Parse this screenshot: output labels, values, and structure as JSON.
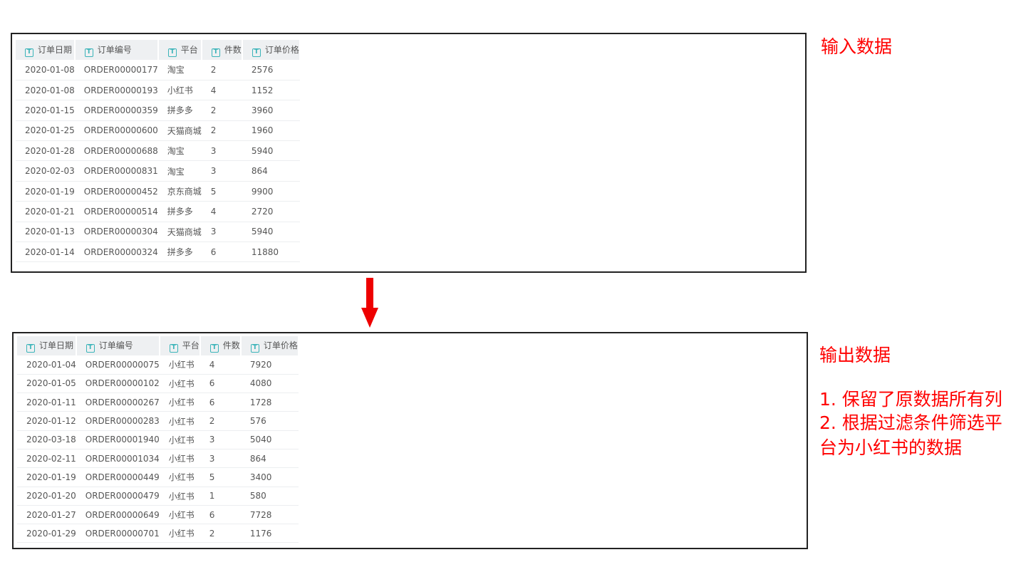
{
  "columns": [
    "订单日期",
    "订单编号",
    "平台",
    "件数",
    "订单价格"
  ],
  "column_icon": "text-type-icon",
  "input_table": {
    "rows": [
      [
        "2020-01-08",
        "ORDER00000177",
        "淘宝",
        "2",
        "2576"
      ],
      [
        "2020-01-08",
        "ORDER00000193",
        "小红书",
        "4",
        "1152"
      ],
      [
        "2020-01-15",
        "ORDER00000359",
        "拼多多",
        "2",
        "3960"
      ],
      [
        "2020-01-25",
        "ORDER00000600",
        "天猫商城",
        "2",
        "1960"
      ],
      [
        "2020-01-28",
        "ORDER00000688",
        "淘宝",
        "3",
        "5940"
      ],
      [
        "2020-02-03",
        "ORDER00000831",
        "淘宝",
        "3",
        "864"
      ],
      [
        "2020-01-19",
        "ORDER00000452",
        "京东商城",
        "5",
        "9900"
      ],
      [
        "2020-01-21",
        "ORDER00000514",
        "拼多多",
        "4",
        "2720"
      ],
      [
        "2020-01-13",
        "ORDER00000304",
        "天猫商城",
        "3",
        "5940"
      ],
      [
        "2020-01-14",
        "ORDER00000324",
        "拼多多",
        "6",
        "11880"
      ]
    ]
  },
  "output_table": {
    "rows": [
      [
        "2020-01-04",
        "ORDER00000075",
        "小红书",
        "4",
        "7920"
      ],
      [
        "2020-01-05",
        "ORDER00000102",
        "小红书",
        "6",
        "4080"
      ],
      [
        "2020-01-11",
        "ORDER00000267",
        "小红书",
        "6",
        "1728"
      ],
      [
        "2020-01-12",
        "ORDER00000283",
        "小红书",
        "2",
        "576"
      ],
      [
        "2020-03-18",
        "ORDER00001940",
        "小红书",
        "3",
        "5040"
      ],
      [
        "2020-02-11",
        "ORDER00001034",
        "小红书",
        "3",
        "864"
      ],
      [
        "2020-01-19",
        "ORDER00000449",
        "小红书",
        "5",
        "3400"
      ],
      [
        "2020-01-20",
        "ORDER00000479",
        "小红书",
        "1",
        "580"
      ],
      [
        "2020-01-27",
        "ORDER00000649",
        "小红书",
        "6",
        "7728"
      ],
      [
        "2020-01-29",
        "ORDER00000701",
        "小红书",
        "2",
        "1176"
      ]
    ]
  },
  "labels": {
    "input": "输入数据",
    "output": "输出数据",
    "note1": "1. 保留了原数据所有列",
    "note2": "2. 根据过滤条件筛选平",
    "note3": "台为小红书的数据"
  },
  "colors": {
    "annotation": "#ff0000",
    "arrow": "#ee0000",
    "icon": "#3bb4b9"
  }
}
